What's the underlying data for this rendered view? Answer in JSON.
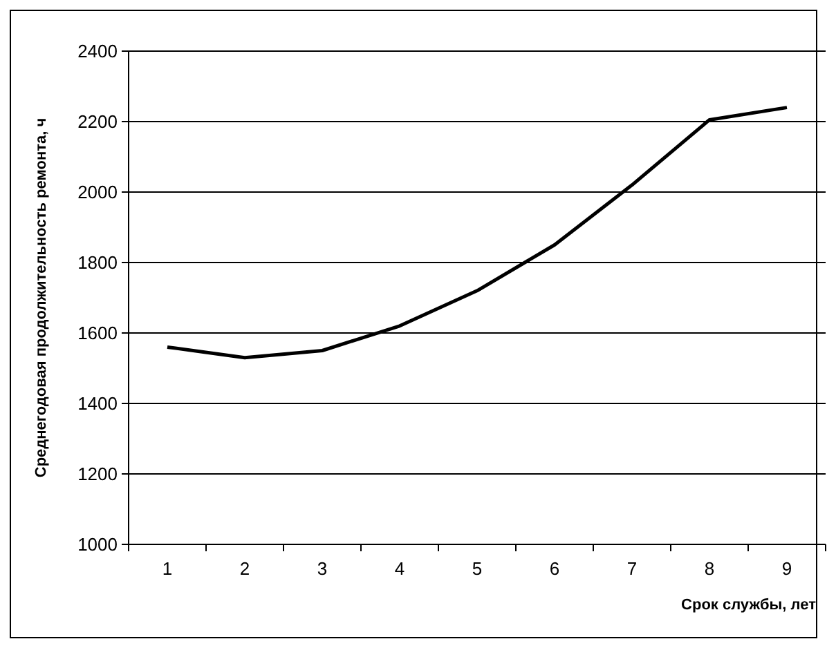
{
  "chart_data": {
    "type": "line",
    "xlabel": "Срок службы, лет",
    "ylabel": "Среднегодовая продолжительность ремонта, ч",
    "categories": [
      "1",
      "2",
      "3",
      "4",
      "5",
      "6",
      "7",
      "8",
      "9"
    ],
    "series": [
      {
        "color": "#000000",
        "values": [
          1560,
          1530,
          1550,
          1620,
          1720,
          1850,
          2020,
          2205,
          2240
        ]
      }
    ],
    "ylim": [
      1000,
      2400
    ],
    "yticks": [
      1000,
      1200,
      1400,
      1600,
      1800,
      2000,
      2200,
      2400
    ],
    "grid": "y",
    "marker": "none",
    "line_style": "solid"
  }
}
